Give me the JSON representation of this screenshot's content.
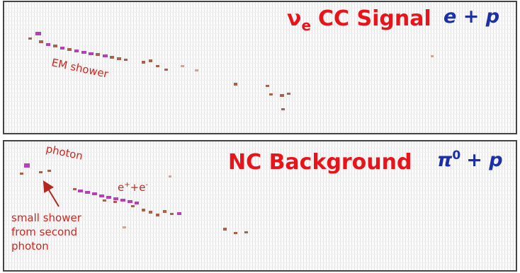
{
  "panels": [
    {
      "title": {
        "symbol": "ν",
        "subscript": "e",
        "text": "CC Signal"
      },
      "process": "e + p",
      "annotations": [
        "EM shower"
      ]
    },
    {
      "title": {
        "text": "NC Background"
      },
      "process": {
        "symbol": "π",
        "superscript": "0",
        "text": "+ p"
      },
      "annotations": {
        "photon": "photon",
        "pair": [
          "e",
          "+",
          "+e",
          "-"
        ],
        "note": [
          "small shower",
          "from second",
          "photon"
        ]
      }
    }
  ]
}
